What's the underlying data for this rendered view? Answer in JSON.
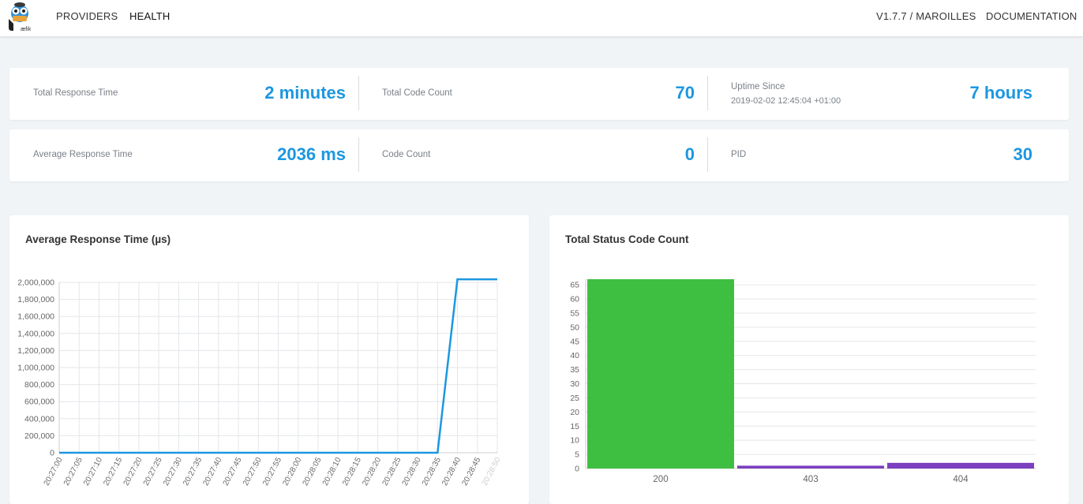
{
  "nav": {
    "providers": "PROVIDERS",
    "health": "HEALTH",
    "version": "V1.7.7 / MAROILLES",
    "documentation": "DOCUMENTATION"
  },
  "logo": {
    "text": "æfik"
  },
  "stats": {
    "total_response_time": {
      "label": "Total Response Time",
      "value": "2 minutes"
    },
    "total_code_count": {
      "label": "Total Code Count",
      "value": "70"
    },
    "uptime": {
      "label": "Uptime Since",
      "since": "2019-02-02 12:45:04 +01:00",
      "value": "7 hours"
    },
    "average_response_time": {
      "label": "Average Response Time",
      "value": "2036 ms"
    },
    "code_count": {
      "label": "Code Count",
      "value": "0"
    },
    "pid": {
      "label": "PID",
      "value": "30"
    }
  },
  "charts": {
    "response_title": "Average Response Time (µs)",
    "status_title": "Total Status Code Count"
  },
  "colors": {
    "accent": "#1c97e0",
    "line": "#1c97e0",
    "bar_200": "#3fbf42",
    "bar_other": "#7b3fbf"
  },
  "chart_data": [
    {
      "type": "line",
      "title": "Average Response Time (µs)",
      "x": [
        "20:27:00",
        "20:27:05",
        "20:27:10",
        "20:27:15",
        "20:27:20",
        "20:27:25",
        "20:27:30",
        "20:27:35",
        "20:27:40",
        "20:27:45",
        "20:27:50",
        "20:27:55",
        "20:28:00",
        "20:28:05",
        "20:28:10",
        "20:28:15",
        "20:28:20",
        "20:28:25",
        "20:28:30",
        "20:28:35",
        "20:28:40",
        "20:28:45",
        "20:28:50"
      ],
      "series": [
        {
          "values": [
            0,
            0,
            0,
            0,
            0,
            0,
            0,
            0,
            0,
            0,
            0,
            0,
            0,
            0,
            0,
            0,
            0,
            0,
            0,
            0,
            2036000,
            2036000,
            2036000
          ]
        }
      ],
      "yticks": [
        "0",
        "200,000",
        "400,000",
        "600,000",
        "800,000",
        "1,000,000",
        "1,200,000",
        "1,400,000",
        "1,600,000",
        "1,800,000",
        "2,000,000"
      ],
      "ylim": [
        0,
        2000000
      ],
      "grid": true
    },
    {
      "type": "bar",
      "title": "Total Status Code Count",
      "categories": [
        "200",
        "403",
        "404"
      ],
      "values": [
        67,
        1,
        2
      ],
      "yticks": [
        "0",
        "5",
        "10",
        "15",
        "20",
        "25",
        "30",
        "35",
        "40",
        "45",
        "50",
        "55",
        "60",
        "65"
      ],
      "ylim": [
        0,
        67
      ],
      "grid": true
    }
  ]
}
